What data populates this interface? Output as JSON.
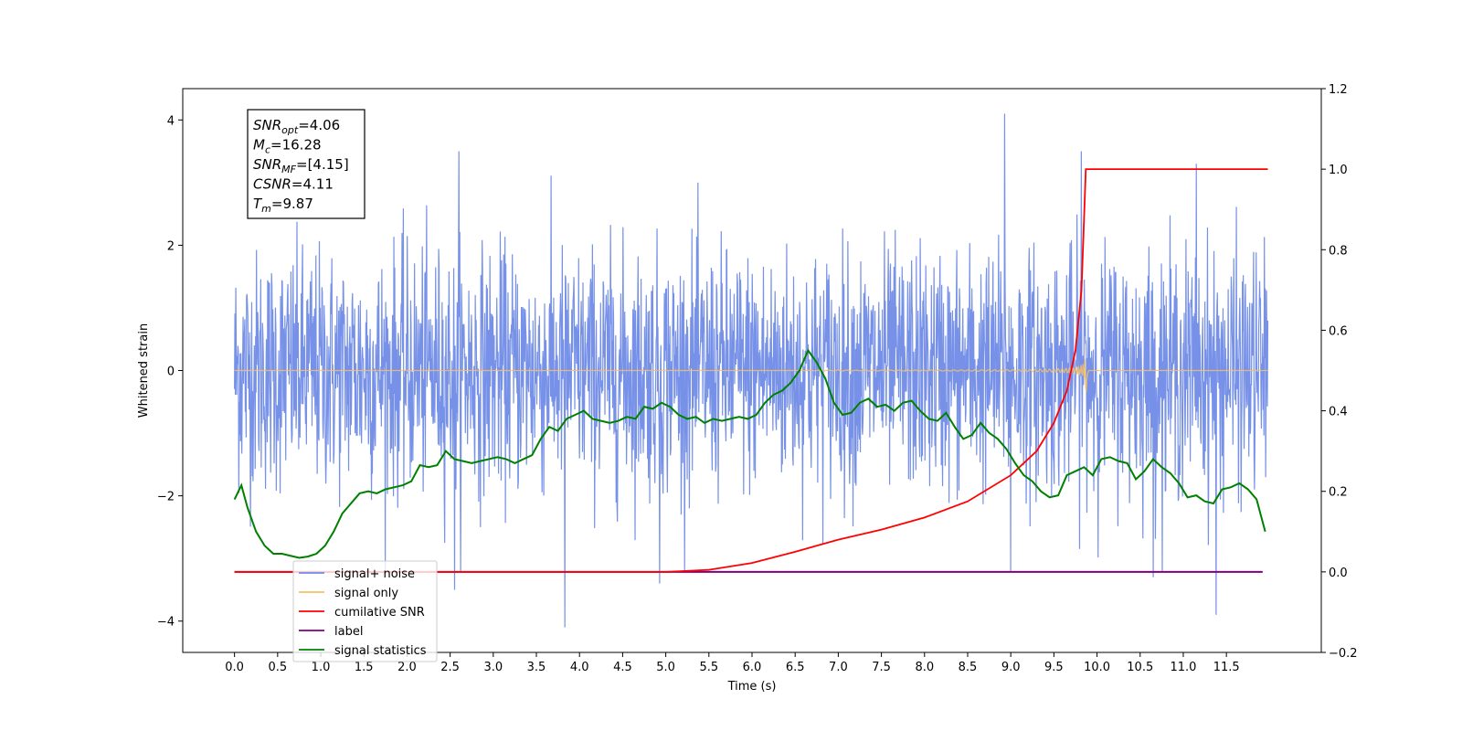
{
  "chart_data": {
    "type": "line",
    "xlabel": "Time (s)",
    "ylabel": "Whitened strain",
    "xlim": [
      -0.6,
      12.6
    ],
    "ylim_left": [
      -4.5,
      4.5
    ],
    "ylim_right": [
      -0.2,
      1.2
    ],
    "x_ticks": [
      0.0,
      0.5,
      1.0,
      1.5,
      2.0,
      2.5,
      3.0,
      3.5,
      4.0,
      4.5,
      5.0,
      5.5,
      6.0,
      6.5,
      7.0,
      7.5,
      8.0,
      8.5,
      9.0,
      9.5,
      10.0,
      10.5,
      11.0,
      11.5
    ],
    "x_tick_labels": [
      "0.0",
      "0.5",
      "1.0",
      "1.5",
      "2.0",
      "2.5",
      "3.0",
      "3.5",
      "4.0",
      "4.5",
      "5.0",
      "5.5",
      "6.0",
      "6.5",
      "7.0",
      "7.5",
      "8.0",
      "8.5",
      "9.0",
      "9.5",
      "10.0",
      "10.5",
      "11.0",
      "11.5"
    ],
    "y_left_ticks": [
      -4,
      -2,
      0,
      2,
      4
    ],
    "y_left_tick_labels": [
      "−4",
      "−2",
      "0",
      "2",
      "4"
    ],
    "y_right_ticks": [
      -0.2,
      0.0,
      0.2,
      0.4,
      0.6,
      0.8,
      1.0,
      1.2
    ],
    "y_right_tick_labels": [
      "−0.2",
      "0.0",
      "0.2",
      "0.4",
      "0.6",
      "0.8",
      "1.0",
      "1.2"
    ],
    "annotation": [
      {
        "base": "SNR",
        "sub": "opt",
        "value": "=4.06"
      },
      {
        "base": "M",
        "sub": "c",
        "value": "=16.28"
      },
      {
        "base": "SNR",
        "sub": "MF",
        "value": "=[4.15]"
      },
      {
        "base": "CSNR",
        "sub": "",
        "value": "=4.11"
      },
      {
        "base": "T",
        "sub": "m",
        "value": "=9.87"
      }
    ],
    "legend_position": "lower-left",
    "legend": [
      {
        "label": "signal+ noise",
        "color": "#6f8be6"
      },
      {
        "label": "signal only",
        "color": "#f5c06a"
      },
      {
        "label": "cumilative SNR",
        "color": "#ff0000"
      },
      {
        "label": "label",
        "color": "#800080"
      },
      {
        "label": "signal statistics",
        "color": "#008000"
      }
    ],
    "series": [
      {
        "name": "signal+ noise",
        "axis": "left",
        "color": "#6f8be6",
        "description_range": [
          -2.5,
          2.5
        ],
        "duration": [
          0.0,
          11.98
        ],
        "notable_peaks": [
          {
            "x": 8.93,
            "y": 4.1
          },
          {
            "x": 9.82,
            "y": 3.5
          },
          {
            "x": 11.15,
            "y": 3.3
          },
          {
            "x": 2.6,
            "y": 3.5
          },
          {
            "x": 3.83,
            "y": -4.1
          },
          {
            "x": 11.38,
            "y": -3.9
          },
          {
            "x": 2.55,
            "y": -3.5
          },
          {
            "x": 4.93,
            "y": -3.4
          },
          {
            "x": 10.65,
            "y": -3.3
          },
          {
            "x": 9.0,
            "y": -3.2
          }
        ]
      },
      {
        "name": "signal only",
        "axis": "left",
        "color": "#f5c06a",
        "chirp_start": 6.6,
        "merger_time": 9.87,
        "peak_amplitude": 0.85
      },
      {
        "name": "cumilative SNR",
        "axis": "right",
        "color": "#ff0000",
        "x": [
          0.0,
          5.0,
          5.5,
          6.0,
          6.5,
          7.0,
          7.5,
          8.0,
          8.5,
          9.0,
          9.3,
          9.5,
          9.65,
          9.75,
          9.82,
          9.87,
          11.98
        ],
        "y": [
          0.0,
          0.0,
          0.005,
          0.022,
          0.05,
          0.08,
          0.105,
          0.135,
          0.175,
          0.24,
          0.3,
          0.37,
          0.45,
          0.55,
          0.7,
          1.0,
          1.0
        ]
      },
      {
        "name": "label",
        "axis": "right",
        "color": "#800080",
        "x": [
          0.0,
          11.92
        ],
        "y": [
          0.0,
          0.0
        ]
      },
      {
        "name": "signal statistics",
        "axis": "right",
        "color": "#008000",
        "x": [
          0.0,
          0.08,
          0.15,
          0.25,
          0.35,
          0.45,
          0.55,
          0.65,
          0.75,
          0.85,
          0.95,
          1.05,
          1.15,
          1.25,
          1.35,
          1.45,
          1.55,
          1.65,
          1.75,
          1.85,
          1.95,
          2.05,
          2.15,
          2.25,
          2.35,
          2.45,
          2.55,
          2.65,
          2.75,
          2.85,
          2.95,
          3.05,
          3.15,
          3.25,
          3.35,
          3.45,
          3.55,
          3.65,
          3.75,
          3.85,
          3.95,
          4.05,
          4.15,
          4.25,
          4.35,
          4.45,
          4.55,
          4.65,
          4.75,
          4.85,
          4.95,
          5.05,
          5.15,
          5.25,
          5.35,
          5.45,
          5.55,
          5.65,
          5.75,
          5.85,
          5.95,
          6.05,
          6.15,
          6.25,
          6.35,
          6.45,
          6.55,
          6.65,
          6.75,
          6.85,
          6.95,
          7.05,
          7.15,
          7.25,
          7.35,
          7.45,
          7.55,
          7.65,
          7.75,
          7.85,
          7.95,
          8.05,
          8.15,
          8.25,
          8.35,
          8.45,
          8.55,
          8.65,
          8.75,
          8.85,
          8.95,
          9.05,
          9.15,
          9.25,
          9.35,
          9.45,
          9.55,
          9.65,
          9.75,
          9.85,
          9.95,
          10.05,
          10.15,
          10.25,
          10.35,
          10.45,
          10.55,
          10.65,
          10.75,
          10.85,
          10.95,
          11.05,
          11.15,
          11.25,
          11.35,
          11.45,
          11.55,
          11.65,
          11.75,
          11.85,
          11.95
        ],
        "y": [
          0.18,
          0.215,
          0.16,
          0.1,
          0.065,
          0.045,
          0.045,
          0.04,
          0.035,
          0.038,
          0.045,
          0.065,
          0.1,
          0.145,
          0.17,
          0.195,
          0.2,
          0.195,
          0.205,
          0.21,
          0.215,
          0.225,
          0.265,
          0.26,
          0.265,
          0.3,
          0.28,
          0.275,
          0.27,
          0.275,
          0.28,
          0.285,
          0.28,
          0.27,
          0.28,
          0.29,
          0.33,
          0.36,
          0.35,
          0.38,
          0.39,
          0.4,
          0.38,
          0.375,
          0.37,
          0.375,
          0.385,
          0.38,
          0.41,
          0.405,
          0.42,
          0.41,
          0.39,
          0.38,
          0.385,
          0.37,
          0.38,
          0.375,
          0.38,
          0.385,
          0.38,
          0.39,
          0.42,
          0.44,
          0.45,
          0.47,
          0.5,
          0.55,
          0.52,
          0.48,
          0.42,
          0.39,
          0.395,
          0.42,
          0.43,
          0.41,
          0.415,
          0.4,
          0.42,
          0.425,
          0.4,
          0.38,
          0.375,
          0.395,
          0.36,
          0.33,
          0.34,
          0.37,
          0.345,
          0.33,
          0.305,
          0.27,
          0.24,
          0.225,
          0.2,
          0.185,
          0.19,
          0.24,
          0.25,
          0.26,
          0.24,
          0.28,
          0.285,
          0.275,
          0.27,
          0.23,
          0.25,
          0.28,
          0.26,
          0.245,
          0.22,
          0.185,
          0.19,
          0.175,
          0.17,
          0.205,
          0.21,
          0.22,
          0.205,
          0.18,
          0.1
        ]
      }
    ]
  }
}
